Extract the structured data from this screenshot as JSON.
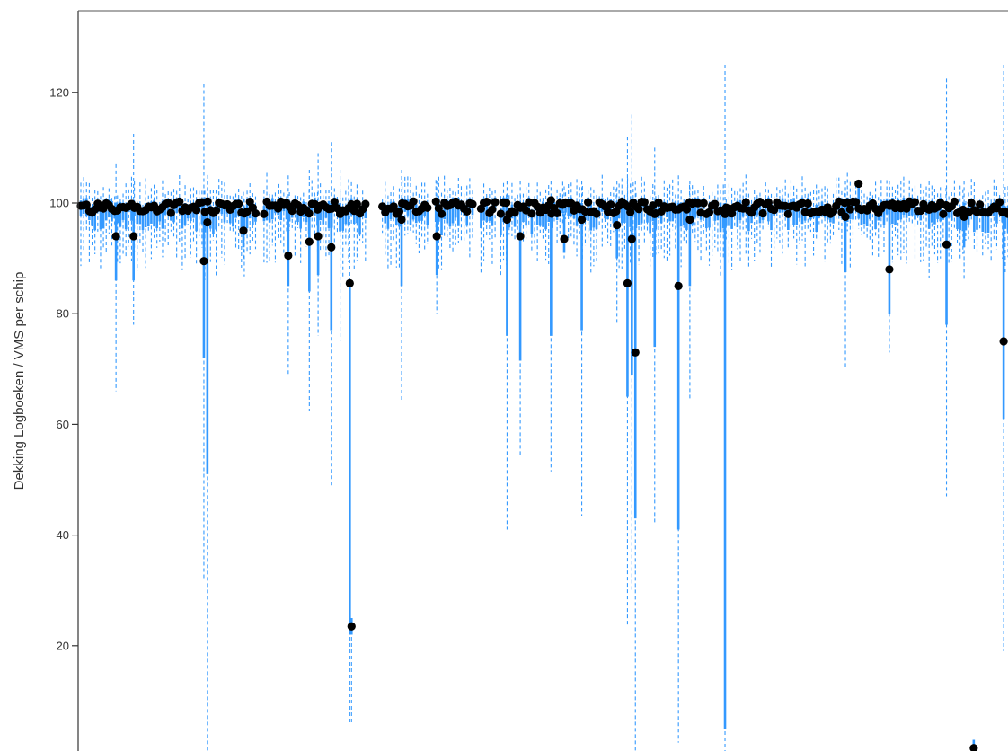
{
  "chart_data": {
    "type": "scatter",
    "ylabel": "Dekking Logboeken / VMS per schip",
    "xlabel": "",
    "ylim": [
      0,
      136
    ],
    "y_ticks": [
      20,
      40,
      60,
      80,
      100,
      120
    ],
    "y_tick_labels": [
      "20",
      "40",
      "60",
      "80",
      "100",
      "120"
    ],
    "grid": false,
    "colors": {
      "interval": "#3399ff",
      "point": "#000000",
      "axis": "#333333"
    },
    "x_range": [
      1,
      100
    ],
    "outliers": [
      {
        "x": 5.0,
        "y": 94,
        "lo": 86,
        "hi": 100,
        "wlo": 66,
        "whi": 107
      },
      {
        "x": 7.0,
        "y": 94,
        "lo": 86,
        "hi": 100,
        "wlo": 78,
        "whi": 112.5
      },
      {
        "x": 15.0,
        "y": 89.5,
        "lo": 72,
        "hi": 100,
        "wlo": 32,
        "whi": 121.5
      },
      {
        "x": 15.4,
        "y": 96.5,
        "lo": 51,
        "hi": 100,
        "wlo": 0,
        "whi": 104
      },
      {
        "x": 19.5,
        "y": 95,
        "lo": 92,
        "hi": 99,
        "wlo": 90,
        "whi": 102
      },
      {
        "x": 24.6,
        "y": 90.5,
        "lo": 85,
        "hi": 100,
        "wlo": 69,
        "whi": 105
      },
      {
        "x": 27.0,
        "y": 93,
        "lo": 84,
        "hi": 100,
        "wlo": 62.5,
        "whi": 106
      },
      {
        "x": 28.0,
        "y": 94,
        "lo": 87,
        "hi": 100,
        "wlo": 76,
        "whi": 109
      },
      {
        "x": 29.5,
        "y": 92,
        "lo": 77,
        "hi": 100,
        "wlo": 48.5,
        "whi": 111
      },
      {
        "x": 30.5,
        "y": 98,
        "lo": 95,
        "hi": 100,
        "wlo": 75,
        "whi": 106
      },
      {
        "x": 31.6,
        "y": 85.5,
        "lo": 22,
        "hi": 85,
        "wlo": 6,
        "whi": 100
      },
      {
        "x": 31.8,
        "y": 23.5,
        "lo": 22,
        "hi": 25,
        "wlo": 6,
        "whi": 25
      },
      {
        "x": 37.5,
        "y": 97,
        "lo": 85,
        "hi": 100,
        "wlo": 64,
        "whi": 106
      },
      {
        "x": 41.5,
        "y": 94,
        "lo": 87,
        "hi": 100,
        "wlo": 80,
        "whi": 104
      },
      {
        "x": 49.5,
        "y": 97,
        "lo": 76,
        "hi": 100,
        "wlo": 41,
        "whi": 104
      },
      {
        "x": 51.0,
        "y": 94,
        "lo": 71.5,
        "hi": 100,
        "wlo": 54.5,
        "whi": 104
      },
      {
        "x": 54.5,
        "y": 100.5,
        "lo": 76,
        "hi": 100,
        "wlo": 51.5,
        "whi": 104
      },
      {
        "x": 56.0,
        "y": 93.5,
        "lo": 91,
        "hi": 98,
        "wlo": 90,
        "whi": 103
      },
      {
        "x": 58.0,
        "y": 97,
        "lo": 77,
        "hi": 100,
        "wlo": 43.5,
        "whi": 104
      },
      {
        "x": 62.0,
        "y": 96,
        "lo": 90,
        "hi": 99,
        "wlo": 78,
        "whi": 104
      },
      {
        "x": 63.2,
        "y": 85.5,
        "lo": 65,
        "hi": 100,
        "wlo": 23.5,
        "whi": 112
      },
      {
        "x": 63.7,
        "y": 93.5,
        "lo": 69,
        "hi": 100,
        "wlo": 30,
        "whi": 116
      },
      {
        "x": 64.1,
        "y": 73,
        "lo": 43,
        "hi": 100,
        "wlo": 1,
        "whi": 104
      },
      {
        "x": 66.3,
        "y": 98,
        "lo": 74,
        "hi": 100,
        "wlo": 42,
        "whi": 110
      },
      {
        "x": 69.0,
        "y": 85,
        "lo": 41,
        "hi": 100,
        "wlo": 2.5,
        "whi": 105
      },
      {
        "x": 70.3,
        "y": 97,
        "lo": 85,
        "hi": 100,
        "wlo": 64.5,
        "whi": 104
      },
      {
        "x": 74.3,
        "y": 98,
        "lo": 5,
        "hi": 100,
        "wlo": 0.5,
        "whi": 125
      },
      {
        "x": 89.5,
        "y": 103.5,
        "lo": 100,
        "hi": 104,
        "wlo": 98,
        "whi": 104
      },
      {
        "x": 88.0,
        "y": 97.5,
        "lo": 87.5,
        "hi": 100,
        "wlo": 70,
        "whi": 104
      },
      {
        "x": 93.0,
        "y": 88,
        "lo": 80,
        "hi": 100,
        "wlo": 73,
        "whi": 104
      },
      {
        "x": 99.5,
        "y": 92.5,
        "lo": 78,
        "hi": 100,
        "wlo": 47,
        "whi": 122.5
      },
      {
        "x": 102.6,
        "y": 1.5,
        "lo": 0.5,
        "hi": 3,
        "wlo": 0,
        "whi": 3
      },
      {
        "x": 106.0,
        "y": 75,
        "lo": 61,
        "hi": 100,
        "wlo": 19,
        "whi": 125
      },
      {
        "x": 101.5,
        "y": 97.5,
        "lo": 92,
        "hi": 100,
        "wlo": 86,
        "whi": 104
      }
    ]
  }
}
